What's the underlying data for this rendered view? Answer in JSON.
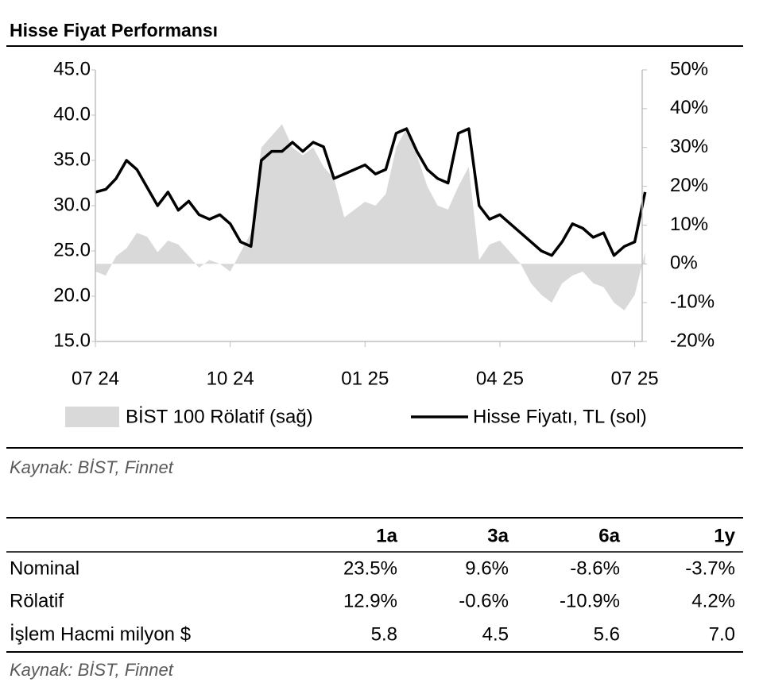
{
  "chart_data": {
    "type": "line",
    "title": "Hisse Fiyat Performansı",
    "categories": [
      "07 24",
      null,
      null,
      null,
      null,
      null,
      null,
      null,
      null,
      null,
      null,
      null,
      null,
      "10 24",
      null,
      null,
      null,
      null,
      null,
      null,
      null,
      null,
      null,
      null,
      null,
      null,
      "01 25",
      null,
      null,
      null,
      null,
      null,
      null,
      null,
      null,
      null,
      null,
      null,
      null,
      "04 25",
      null,
      null,
      null,
      null,
      null,
      null,
      null,
      null,
      null,
      null,
      null,
      null,
      "07 25",
      null
    ],
    "series": [
      {
        "name": "BİST 100 Rölatif (sağ)",
        "kind": "area",
        "color": "#d9d9d9",
        "axis": "y2",
        "values": [
          -2,
          -3,
          2,
          4,
          8,
          7,
          3,
          6,
          5,
          2,
          -1,
          1,
          0,
          -2,
          3,
          8,
          30,
          33,
          36,
          30,
          28,
          30,
          25,
          22,
          12,
          14,
          16,
          15,
          18,
          30,
          35,
          28,
          20,
          15,
          14,
          20,
          25,
          1,
          5,
          6,
          3,
          0,
          -5,
          -8,
          -10,
          -5,
          -3,
          -2,
          -5,
          -6,
          -10,
          -12,
          -8,
          3
        ]
      },
      {
        "name": "Hisse Fiyatı, TL (sol)",
        "kind": "line",
        "color": "#000000",
        "values": [
          31.5,
          31.8,
          33,
          35,
          34,
          32,
          30,
          31.5,
          29.5,
          30.5,
          29,
          28.5,
          29,
          28,
          26,
          25.5,
          35,
          36,
          36,
          37,
          36,
          37,
          36.5,
          33,
          33.5,
          34,
          34.5,
          33.5,
          34,
          38,
          38.5,
          36,
          34,
          33,
          32.5,
          38,
          38.5,
          30,
          28.5,
          29,
          28,
          27,
          26,
          25,
          24.5,
          26,
          28,
          27.5,
          26.5,
          27,
          24.5,
          25.5,
          26,
          31.5
        ]
      }
    ],
    "ylim": [
      15,
      45
    ],
    "yticks": [
      {
        "value": 15,
        "label": "15.0"
      },
      {
        "value": 20,
        "label": "20.0"
      },
      {
        "value": 25,
        "label": "25.0"
      },
      {
        "value": 30,
        "label": "30.0"
      },
      {
        "value": 35,
        "label": "35.0"
      },
      {
        "value": 40,
        "label": "40.0"
      },
      {
        "value": 45,
        "label": "45.0"
      }
    ],
    "y2lim": [
      -20,
      50
    ],
    "y2ticks": [
      {
        "value": -20,
        "label": "-20%"
      },
      {
        "value": -10,
        "label": "-10%"
      },
      {
        "value": 0,
        "label": "0%"
      },
      {
        "value": 10,
        "label": "10%"
      },
      {
        "value": 20,
        "label": "20%"
      },
      {
        "value": 30,
        "label": "30%"
      },
      {
        "value": 40,
        "label": "40%"
      },
      {
        "value": 50,
        "label": "50%"
      }
    ],
    "grid": false,
    "legend": "bottom",
    "source": "Kaynak: BİST, Finnet"
  },
  "table": {
    "columns": [
      "1a",
      "3a",
      "6a",
      "1y"
    ],
    "rows": [
      [
        "Nominal",
        "23.5%",
        "9.6%",
        "-8.6%",
        "-3.7%"
      ],
      [
        "Rölatif",
        "12.9%",
        "-0.6%",
        "-10.9%",
        "4.2%"
      ],
      [
        "İşlem Hacmi milyon $",
        "5.8",
        "4.5",
        "5.6",
        "7.0"
      ]
    ],
    "source": "Kaynak: BİST, Finnet"
  }
}
